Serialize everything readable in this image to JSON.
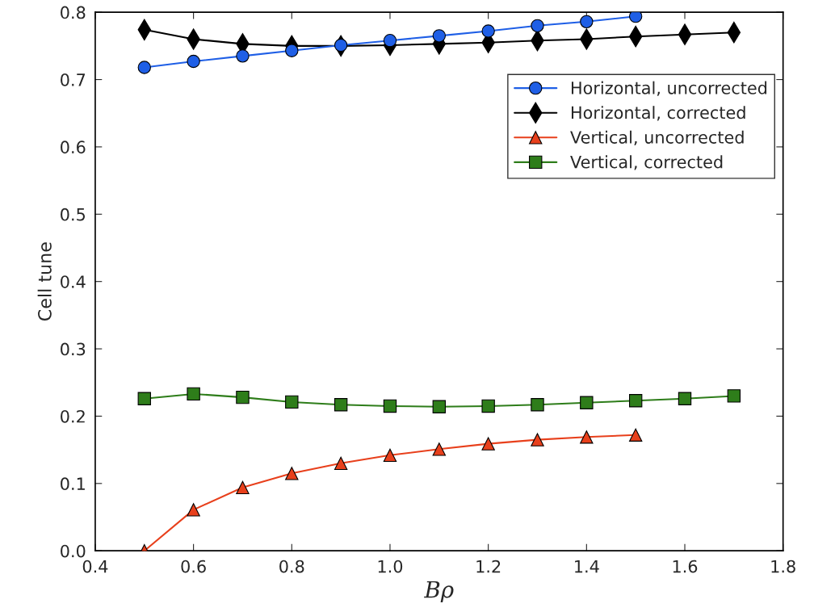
{
  "chart_data": {
    "type": "line",
    "xlabel": "Bρ",
    "ylabel": "Cell tune",
    "x": [
      0.5,
      0.6,
      0.7,
      0.8,
      0.9,
      1.0,
      1.1,
      1.2,
      1.3,
      1.4,
      1.5,
      1.6,
      1.7
    ],
    "series": [
      {
        "name": "Horizontal, uncorrected",
        "color": "#1f5fe6",
        "marker": "circle",
        "values": [
          0.718,
          0.727,
          0.735,
          0.743,
          0.751,
          0.758,
          0.765,
          0.772,
          0.78,
          0.786,
          0.794,
          null,
          null
        ]
      },
      {
        "name": "Horizontal, corrected",
        "color": "#000000",
        "marker": "diamond",
        "values": [
          0.774,
          0.76,
          0.753,
          0.75,
          0.75,
          0.751,
          0.753,
          0.755,
          0.758,
          0.76,
          0.764,
          0.767,
          0.77
        ]
      },
      {
        "name": "Vertical, uncorrected",
        "color": "#e8401c",
        "marker": "triangle",
        "values": [
          0.0,
          0.061,
          0.094,
          0.115,
          0.13,
          0.142,
          0.151,
          0.159,
          0.165,
          0.169,
          0.172,
          null,
          null
        ]
      },
      {
        "name": "Vertical, corrected",
        "color": "#2e7d1a",
        "marker": "square",
        "values": [
          0.226,
          0.233,
          0.228,
          0.221,
          0.217,
          0.215,
          0.214,
          0.215,
          0.217,
          0.22,
          0.223,
          0.226,
          0.23
        ]
      }
    ],
    "xlim": [
      0.4,
      1.8
    ],
    "xticks": [
      {
        "value": 0.4,
        "label": "0.4"
      },
      {
        "value": 0.6,
        "label": "0.6"
      },
      {
        "value": 0.8,
        "label": "0.8"
      },
      {
        "value": 1.0,
        "label": "1.0"
      },
      {
        "value": 1.2,
        "label": "1.2"
      },
      {
        "value": 1.4,
        "label": "1.4"
      },
      {
        "value": 1.6,
        "label": "1.6"
      },
      {
        "value": 1.8,
        "label": "1.8"
      }
    ],
    "ylim": [
      0.0,
      0.8
    ],
    "yticks": [
      {
        "value": 0.0,
        "label": "0.0"
      },
      {
        "value": 0.1,
        "label": "0.1"
      },
      {
        "value": 0.2,
        "label": "0.2"
      },
      {
        "value": 0.3,
        "label": "0.3"
      },
      {
        "value": 0.4,
        "label": "0.4"
      },
      {
        "value": 0.5,
        "label": "0.5"
      },
      {
        "value": 0.6,
        "label": "0.6"
      },
      {
        "value": 0.7,
        "label": "0.7"
      },
      {
        "value": 0.8,
        "label": "0.8"
      }
    ],
    "grid": false,
    "legend": "top right"
  }
}
